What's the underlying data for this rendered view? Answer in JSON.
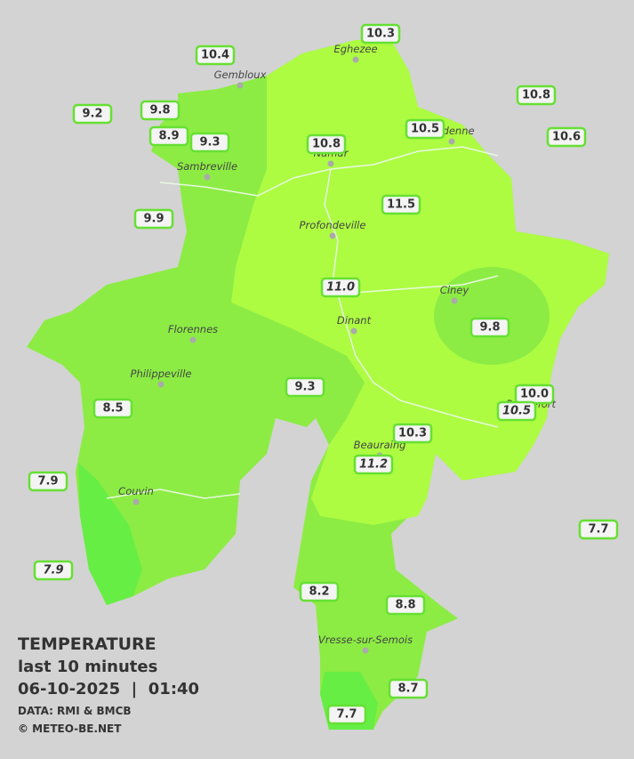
{
  "legend": {
    "title": "TEMPERATURE",
    "subtitle": "last 10 minutes",
    "datetime": "06-10-2025  |  01:40",
    "source": "DATA: RMI & BMCB",
    "copyright": "© METEO-BE.NET"
  },
  "towns": [
    "Eghezee",
    "Gembloux",
    "Andenne",
    "Namur",
    "Sambreville",
    "Profondeville",
    "Ciney",
    "Dinant",
    "Florennes",
    "Philippeville",
    "Rochefort",
    "Beauraing",
    "Couvin",
    "Vresse-sur-Semois"
  ],
  "stations": [
    {
      "value": "10.3"
    },
    {
      "value": "10.4"
    },
    {
      "value": "10.8"
    },
    {
      "value": "9.2"
    },
    {
      "value": "9.8"
    },
    {
      "value": "8.9"
    },
    {
      "value": "9.3"
    },
    {
      "value": "10.5"
    },
    {
      "value": "10.8"
    },
    {
      "value": "10.6"
    },
    {
      "value": "11.5"
    },
    {
      "value": "9.9"
    },
    {
      "value": "11.0",
      "italic": true
    },
    {
      "value": "9.8"
    },
    {
      "value": "9.3"
    },
    {
      "value": "10.0"
    },
    {
      "value": "10.5",
      "italic": true
    },
    {
      "value": "8.5"
    },
    {
      "value": "10.3"
    },
    {
      "value": "11.2",
      "italic": true
    },
    {
      "value": "7.9"
    },
    {
      "value": "7.7"
    },
    {
      "value": "7.9",
      "italic": true
    },
    {
      "value": "8.2"
    },
    {
      "value": "8.8"
    },
    {
      "value": "8.7"
    },
    {
      "value": "7.7"
    }
  ]
}
